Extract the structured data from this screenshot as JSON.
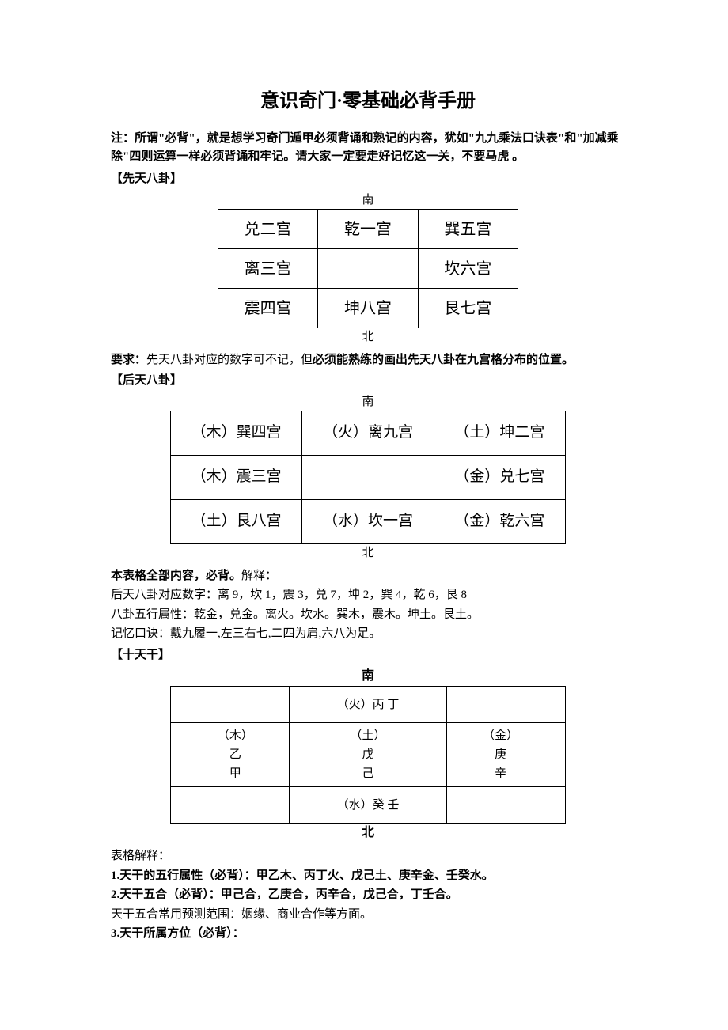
{
  "title": "意识奇门·零基础必背手册",
  "note_prefix": "注：所谓\"必背\"，就是想学习奇门遁甲必须背诵和熟记的内容，犹如\"九九乘法口诀表\"和\"加减乘除\"四则运算一样必须背诵和牢记。请大家一定要走好记忆这一关，不要马虎 。",
  "sec1_title": "【先天八卦】",
  "dir_south": "南",
  "dir_north": "北",
  "bagua1": {
    "r0c0": "兑二宫",
    "r0c1": "乾一宫",
    "r0c2": "巽五宫",
    "r1c0": "离三宫",
    "r1c1": "",
    "r1c2": "坎六宫",
    "r2c0": "震四宫",
    "r2c1": "坤八宫",
    "r2c2": "艮七宫"
  },
  "req1_label": "要求：",
  "req1_text1": "先天八卦对应的数字可不记，但",
  "req1_text2": "必须能熟练的画出先天八卦在九宫格分布的位置。",
  "sec2_title": "【后天八卦】",
  "bagua2": {
    "r0c0": "（木）巽四宫",
    "r0c1": "（火）离九宫",
    "r0c2": "（土）坤二宫",
    "r1c0": "（木）震三宫",
    "r1c1": "",
    "r1c2": "（金）兑七宫",
    "r2c0": "（土）艮八宫",
    "r2c1": "（水）坎一宫",
    "r2c2": "（金）乾六宫"
  },
  "req2": "本表格全部内容，必背。",
  "req2_suffix": "解释：",
  "explain2_1": "后天八卦对应数字：离 9，坎 1，震 3，兑 7，坤 2，巽 4，乾 6，艮 8",
  "explain2_2": "八卦五行属性：乾金，兑金。离火。坎水。巽木，震木。坤土。艮土。",
  "explain2_3": "记忆口诀：戴九履一,左三右七,二四为肩,六八为足。",
  "sec3_title": "【十天干】",
  "tiangan": {
    "r0c0": "",
    "r0c1": "（火）丙  丁",
    "r0c2": "",
    "r1c0_1": "（木）",
    "r1c0_2": "乙",
    "r1c0_3": "甲",
    "r1c1_1": "（土）",
    "r1c1_2": "戊",
    "r1c1_3": "己",
    "r1c2_1": "（金）",
    "r1c2_2": "庚",
    "r1c2_3": "辛",
    "r2c0": "",
    "r2c1": "（水）癸  壬",
    "r2c2": ""
  },
  "table_explain_label": "表格解释：",
  "p1_label": "1.",
  "p1_bold": "天干的五行属性（必背）：甲乙木、丙丁火、戊己土、庚辛金、壬癸水。",
  "p2_label": "2.",
  "p2_bold": "天干五合（必背）：甲己合，乙庚合，丙辛合，戊己合，丁壬合。",
  "p2_extra": "天干五合常用预测范围：姻缘、商业合作等方面。",
  "p3_label": "3.",
  "p3_bold": "天干所属方位（必背）："
}
